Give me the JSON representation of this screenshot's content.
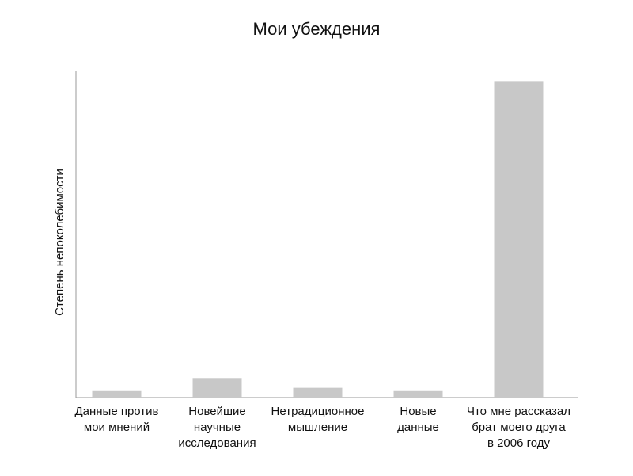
{
  "chart_data": {
    "type": "bar",
    "title": "Мои убеждения",
    "ylabel": "Степень непоколебимости",
    "categories": [
      [
        "Данные против",
        "мои мнений"
      ],
      [
        "Новейшие",
        "научные",
        "исследования"
      ],
      [
        "Нетрадиционное",
        "мышление"
      ],
      [
        "Новые",
        "данные"
      ],
      [
        "Что мне рассказал",
        "брат моего друга",
        "в 2006 году"
      ]
    ],
    "values": [
      2,
      6,
      3,
      2,
      97
    ],
    "color": "#c8c8c8",
    "ylim": [
      0,
      100
    ],
    "grid": false
  }
}
